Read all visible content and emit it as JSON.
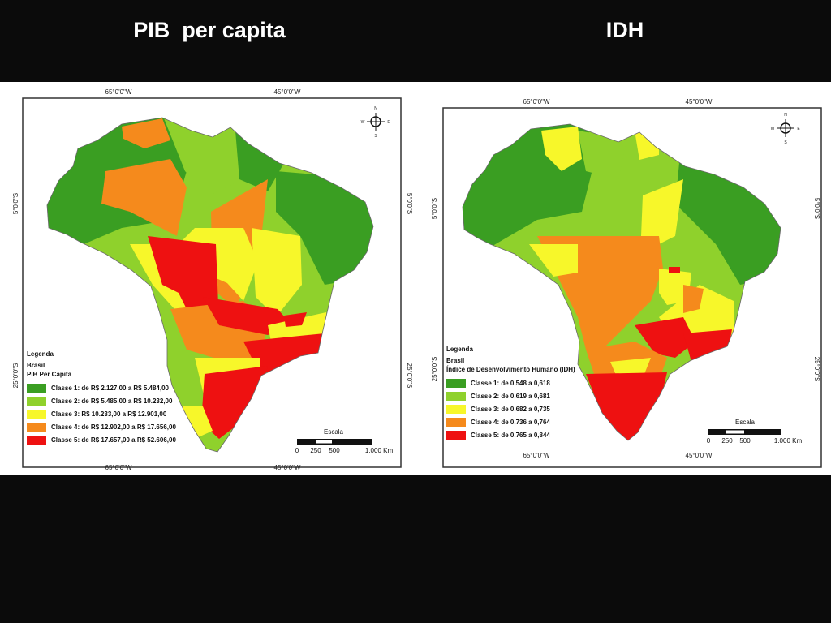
{
  "titles": {
    "left": "PIB  per capita",
    "right": "IDH"
  },
  "pib_map": {
    "top_longitudes": [
      "65°0'0\"W",
      "45°0'0\"W"
    ],
    "bottom_longitudes": [
      "65°0'0\"W",
      "45°0'0\"W"
    ],
    "left_latitudes": [
      "5°0'0\"S",
      "25°0'0\"S"
    ],
    "right_latitudes": [
      "5°0'0\"S",
      "25°0'0\"S"
    ],
    "compass": {
      "n": "N",
      "s": "S",
      "e": "E",
      "w": "W"
    },
    "legend": {
      "heading": "Legenda",
      "layer": "Brasil",
      "variable": "PIB Per Capita",
      "classes": [
        {
          "label": "Classe 1: de R$ 2.127,00 a R$ 5.484,00",
          "color": "#3a9e22"
        },
        {
          "label": "Classe 2: de R$ 5.485,00 a R$ 10.232,00",
          "color": "#8fd12c"
        },
        {
          "label": "Classe 3: R$ 10.233,00 a R$ 12.901,00",
          "color": "#f7f72a"
        },
        {
          "label": "Classe 4: de R$ 12.902,00 a R$ 17.656,00",
          "color": "#f58a1c"
        },
        {
          "label": "Classe 5: de R$ 17.657,00 a R$ 52.606,00",
          "color": "#ee1111"
        }
      ]
    },
    "scale": {
      "title": "Escala",
      "ticks": [
        "0",
        "250",
        "500",
        "1.000 Km"
      ]
    }
  },
  "idh_map": {
    "top_longitudes": [
      "65°0'0\"W",
      "45°0'0\"W"
    ],
    "bottom_longitudes": [
      "65°0'0\"W",
      "45°0'0\"W"
    ],
    "left_latitudes": [
      "5°0'0\"S",
      "25°0'0\"S"
    ],
    "right_latitudes": [
      "5°0'0\"S",
      "25°0'0\"S"
    ],
    "compass": {
      "n": "N",
      "s": "S",
      "e": "E",
      "w": "W"
    },
    "legend": {
      "heading": "Legenda",
      "layer": "Brasil",
      "variable": "Índice de Desenvolvimento Humano (IDH)",
      "classes": [
        {
          "label": "Classe 1: de 0,548 a 0,618",
          "color": "#3a9e22"
        },
        {
          "label": "Classe 2: de 0,619 a 0,681",
          "color": "#8fd12c"
        },
        {
          "label": "Classe 3: de 0,682 a 0,735",
          "color": "#f7f72a"
        },
        {
          "label": "Classe 4: de 0,736 a 0,764",
          "color": "#f58a1c"
        },
        {
          "label": "Classe 5: de 0,765 a 0,844",
          "color": "#ee1111"
        }
      ]
    },
    "scale": {
      "title": "Escala",
      "ticks": [
        "0",
        "250",
        "500",
        "1.000 Km"
      ]
    }
  }
}
